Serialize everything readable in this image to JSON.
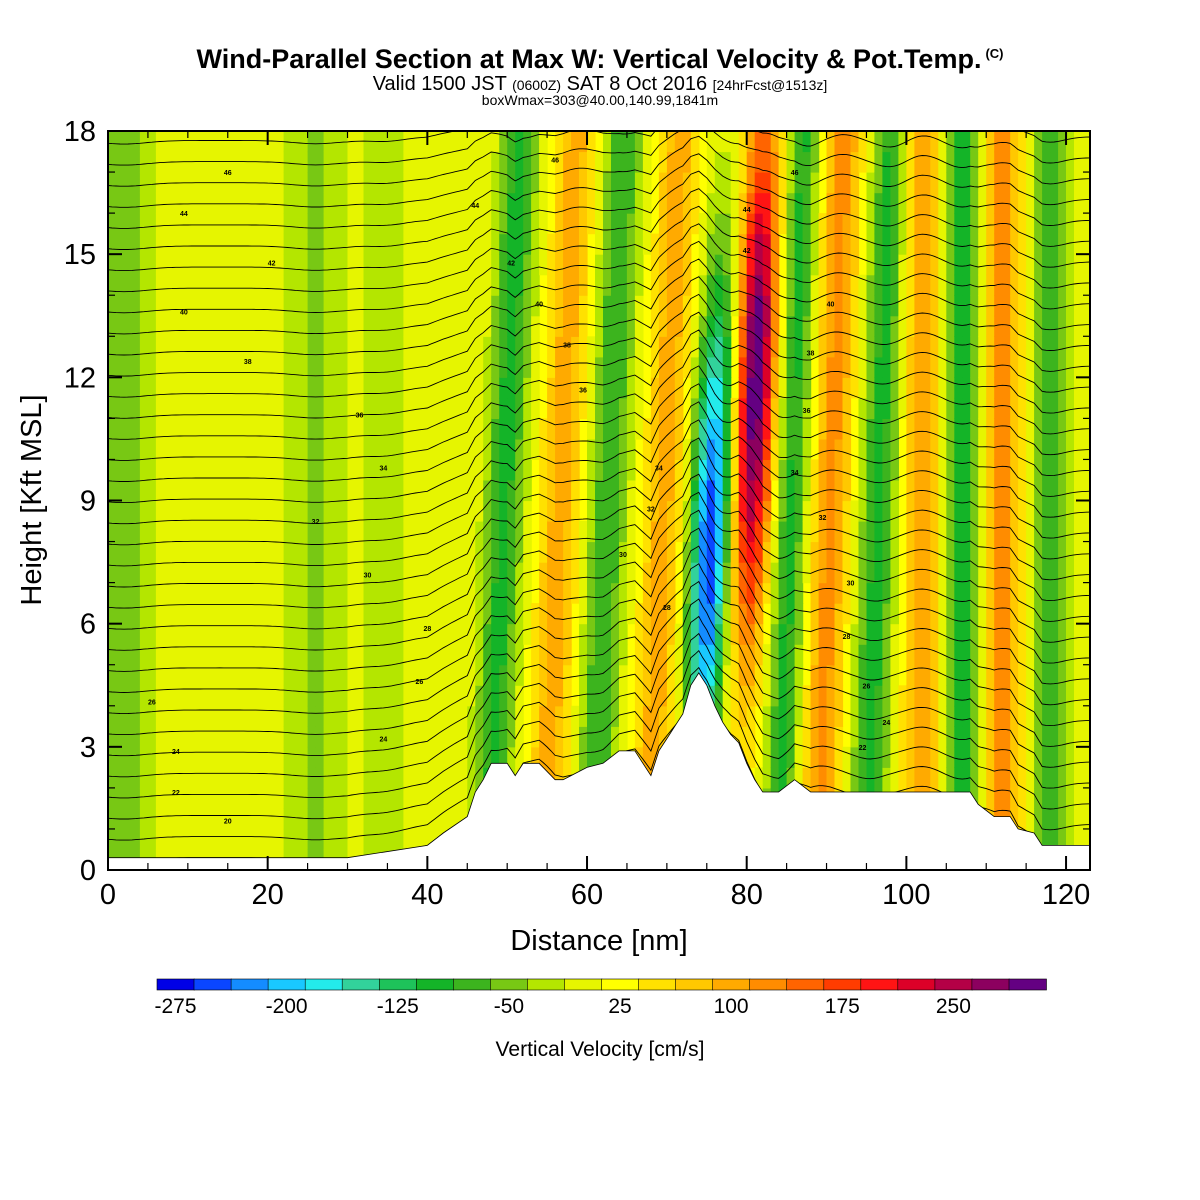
{
  "title": "Wind-Parallel Section at Max W: Vertical Velocity & Pot.Temp.",
  "title_mark": "(C)",
  "subtitle_main": "Valid 1500 JST",
  "subtitle_utc": "(0600Z)",
  "subtitle_date": "SAT 8 Oct 2016",
  "subtitle_fcst": "[24hrFcst@1513z]",
  "subtitle2": "boxWmax=303@40.00,140.99,1841m",
  "colorbar": {
    "title": "Vertical Velocity [cm/s]",
    "tick_labels": [
      "-275",
      "-200",
      "-125",
      "-50",
      "25",
      "100",
      "175",
      "250"
    ],
    "colors": [
      "#0000e6",
      "#0a46ff",
      "#148cff",
      "#19c8ff",
      "#23ebeb",
      "#32d29b",
      "#1ec35a",
      "#14b428",
      "#3cb41e",
      "#78c814",
      "#b4e600",
      "#e6f500",
      "#ffff00",
      "#ffe100",
      "#ffc800",
      "#ffaa00",
      "#ff8c00",
      "#ff6400",
      "#ff3c00",
      "#ff1414",
      "#dc0028",
      "#b40046",
      "#8c005f",
      "#640082"
    ]
  },
  "chart_data": {
    "type": "heatmap",
    "xlabel": "Distance [nm]",
    "ylabel": "Height [Kft MSL]",
    "xlim": [
      0,
      123
    ],
    "ylim": [
      0,
      18
    ],
    "x_ticks": [
      "0",
      "20",
      "40",
      "60",
      "80",
      "100",
      "120"
    ],
    "y_ticks": [
      "0",
      "3",
      "6",
      "9",
      "12",
      "15",
      "18"
    ],
    "field": "Vertical Velocity [cm/s]",
    "max_w": 303,
    "bands": [
      {
        "x": 2,
        "w": -60,
        "width": 4
      },
      {
        "x": 26,
        "w": -55,
        "width": 4
      },
      {
        "x": 35,
        "w": -45,
        "width": 3
      },
      {
        "x": 49,
        "w": -110,
        "width": 2.5
      },
      {
        "x": 56,
        "w": 90,
        "width": 2.5
      },
      {
        "x": 62,
        "w": -100,
        "width": 2.5
      },
      {
        "x": 69,
        "w": 90,
        "width": 2.5
      },
      {
        "x": 75,
        "w": -275,
        "width": 2.5
      },
      {
        "x": 80,
        "w": 303,
        "width": 2.5
      },
      {
        "x": 85,
        "w": -110,
        "width": 2.2
      },
      {
        "x": 90,
        "w": 110,
        "width": 2.5
      },
      {
        "x": 96,
        "w": -110,
        "width": 2.5
      },
      {
        "x": 102,
        "w": 100,
        "width": 2.5
      },
      {
        "x": 107,
        "w": -120,
        "width": 2.5
      },
      {
        "x": 112,
        "w": 110,
        "width": 2.5
      },
      {
        "x": 118,
        "w": -90,
        "width": 2.5
      }
    ],
    "terrain": [
      [
        0,
        0.3
      ],
      [
        6,
        0.3
      ],
      [
        10,
        0.3
      ],
      [
        20,
        0.3
      ],
      [
        30,
        0.3
      ],
      [
        40,
        0.6
      ],
      [
        42,
        0.9
      ],
      [
        45,
        1.3
      ],
      [
        46,
        1.9
      ],
      [
        47,
        2.2
      ],
      [
        48,
        2.6
      ],
      [
        50,
        2.6
      ],
      [
        51,
        2.3
      ],
      [
        52,
        2.6
      ],
      [
        54,
        2.6
      ],
      [
        56,
        2.2
      ],
      [
        57,
        2.2
      ],
      [
        58,
        2.3
      ],
      [
        60,
        2.5
      ],
      [
        62,
        2.6
      ],
      [
        64,
        2.9
      ],
      [
        66,
        2.9
      ],
      [
        67,
        2.6
      ],
      [
        68,
        2.3
      ],
      [
        69,
        2.9
      ],
      [
        70,
        3.2
      ],
      [
        71,
        3.5
      ],
      [
        72,
        3.8
      ],
      [
        73,
        4.5
      ],
      [
        74,
        4.8
      ],
      [
        75,
        4.5
      ],
      [
        76,
        4.0
      ],
      [
        77,
        3.6
      ],
      [
        78,
        3.3
      ],
      [
        79,
        3.1
      ],
      [
        80,
        2.6
      ],
      [
        81,
        2.2
      ],
      [
        82,
        1.9
      ],
      [
        84,
        1.9
      ],
      [
        86,
        2.2
      ],
      [
        88,
        1.9
      ],
      [
        90,
        1.9
      ],
      [
        96,
        1.9
      ],
      [
        100,
        1.9
      ],
      [
        104,
        1.9
      ],
      [
        108,
        1.9
      ],
      [
        109,
        1.6
      ],
      [
        111,
        1.3
      ],
      [
        113,
        1.3
      ],
      [
        114,
        1.0
      ],
      [
        116,
        0.9
      ],
      [
        117,
        0.6
      ],
      [
        120,
        0.6
      ],
      [
        123,
        0.6
      ]
    ],
    "theta_contour_labels": [
      {
        "x": 15,
        "y": 17.0,
        "t": "46"
      },
      {
        "x": 56,
        "y": 17.3,
        "t": "46"
      },
      {
        "x": 86,
        "y": 17.0,
        "t": "46"
      },
      {
        "x": 9.5,
        "y": 16.0,
        "t": "44"
      },
      {
        "x": 46,
        "y": 16.2,
        "t": "44"
      },
      {
        "x": 80,
        "y": 16.1,
        "t": "44"
      },
      {
        "x": 20.5,
        "y": 14.8,
        "t": "42"
      },
      {
        "x": 50.5,
        "y": 14.8,
        "t": "42"
      },
      {
        "x": 80,
        "y": 15.1,
        "t": "42"
      },
      {
        "x": 9.5,
        "y": 13.6,
        "t": "40"
      },
      {
        "x": 54,
        "y": 13.8,
        "t": "40"
      },
      {
        "x": 90.5,
        "y": 13.8,
        "t": "40"
      },
      {
        "x": 17.5,
        "y": 12.4,
        "t": "38"
      },
      {
        "x": 57.5,
        "y": 12.8,
        "t": "38"
      },
      {
        "x": 88,
        "y": 12.6,
        "t": "38"
      },
      {
        "x": 31.5,
        "y": 11.1,
        "t": "36"
      },
      {
        "x": 59.5,
        "y": 11.7,
        "t": "36"
      },
      {
        "x": 87.5,
        "y": 11.2,
        "t": "36"
      },
      {
        "x": 34.5,
        "y": 9.8,
        "t": "34"
      },
      {
        "x": 69,
        "y": 9.8,
        "t": "34"
      },
      {
        "x": 86,
        "y": 9.7,
        "t": "34"
      },
      {
        "x": 26,
        "y": 8.5,
        "t": "32"
      },
      {
        "x": 68,
        "y": 8.8,
        "t": "32"
      },
      {
        "x": 89.5,
        "y": 8.6,
        "t": "32"
      },
      {
        "x": 32.5,
        "y": 7.2,
        "t": "30"
      },
      {
        "x": 64.5,
        "y": 7.7,
        "t": "30"
      },
      {
        "x": 93,
        "y": 7.0,
        "t": "30"
      },
      {
        "x": 40,
        "y": 5.9,
        "t": "28"
      },
      {
        "x": 70,
        "y": 6.4,
        "t": "28"
      },
      {
        "x": 92.5,
        "y": 5.7,
        "t": "28"
      },
      {
        "x": 39,
        "y": 4.6,
        "t": "26"
      },
      {
        "x": 95,
        "y": 4.5,
        "t": "26"
      },
      {
        "x": 5.5,
        "y": 4.1,
        "t": "26"
      },
      {
        "x": 34.5,
        "y": 3.2,
        "t": "24"
      },
      {
        "x": 97.5,
        "y": 3.6,
        "t": "24"
      },
      {
        "x": 8.5,
        "y": 2.9,
        "t": "24"
      },
      {
        "x": 8.5,
        "y": 1.9,
        "t": "22"
      },
      {
        "x": 94.5,
        "y": 3.0,
        "t": "22"
      },
      {
        "x": 15,
        "y": 1.2,
        "t": "20"
      }
    ]
  }
}
